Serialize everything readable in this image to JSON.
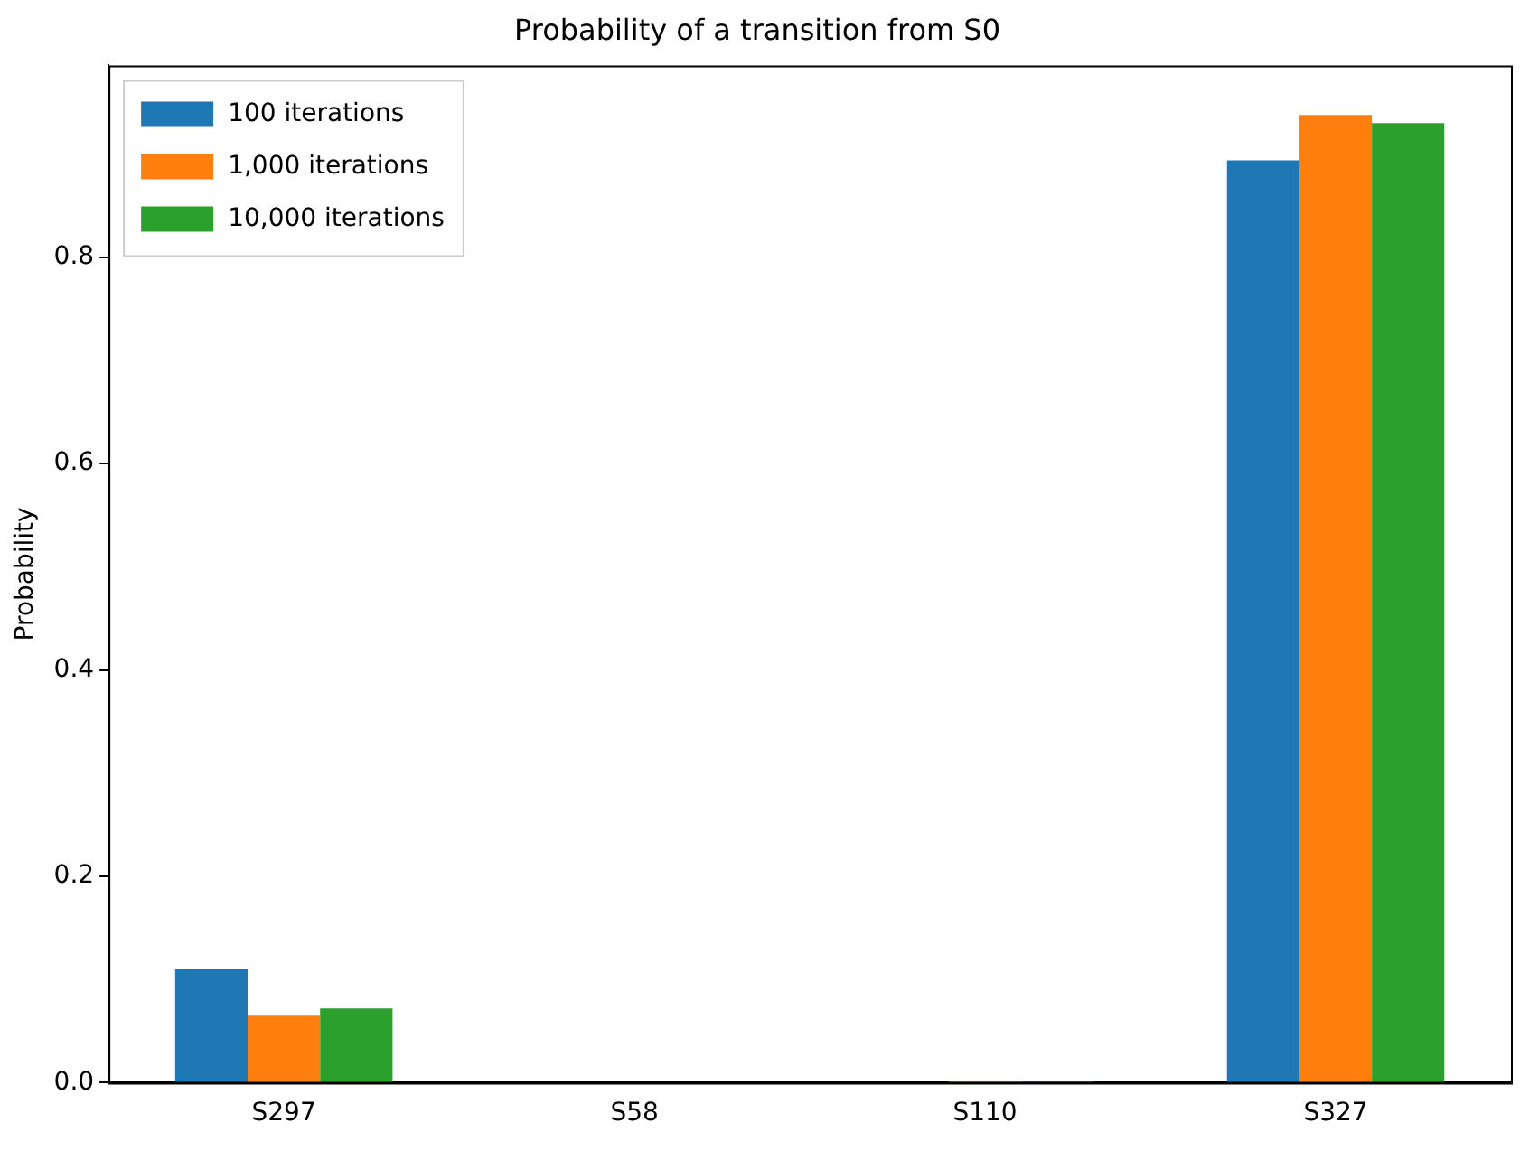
{
  "chart_data": {
    "type": "bar",
    "title": "Probability of a transition from S0",
    "ylabel": "Probability",
    "categories": [
      "S297",
      "S58",
      "S110",
      "S327"
    ],
    "series": [
      {
        "name": "100 iterations",
        "color": "#1f77b4",
        "values": [
          0.11,
          0,
          0,
          0.894
        ]
      },
      {
        "name": "1,000 iterations",
        "color": "#ff7f0e",
        "values": [
          0.065,
          0,
          0.002,
          0.938
        ]
      },
      {
        "name": "10,000 iterations",
        "color": "#2ca02c",
        "values": [
          0.072,
          0,
          0.002,
          0.93
        ]
      }
    ],
    "ylim": [
      0,
      0.986
    ],
    "yticks": [
      {
        "value": 0,
        "label": "0.0"
      },
      0.2,
      0.4,
      0.6,
      0.8
    ],
    "grid": false,
    "legend": "top left"
  }
}
